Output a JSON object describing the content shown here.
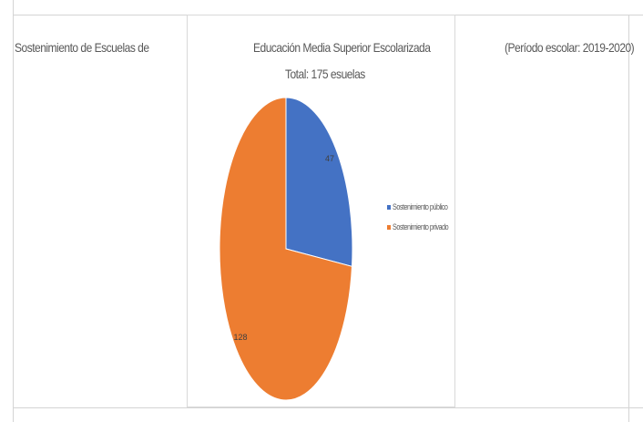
{
  "header": {
    "left_text": "Sostenimiento de Escuelas de",
    "right_text": "(Período escolar: 2019-2020)"
  },
  "chart_data": {
    "type": "pie",
    "title": "Educación Media Superior Escolarizada",
    "subtitle": "Total: 175 esuelas",
    "categories": [
      "Sostenimiento público",
      "Sostenimiento privado"
    ],
    "values": [
      47,
      128
    ],
    "colors": [
      "#4472c4",
      "#ed7d31"
    ],
    "data_labels": [
      "47",
      "128"
    ],
    "legend_position": "right"
  }
}
